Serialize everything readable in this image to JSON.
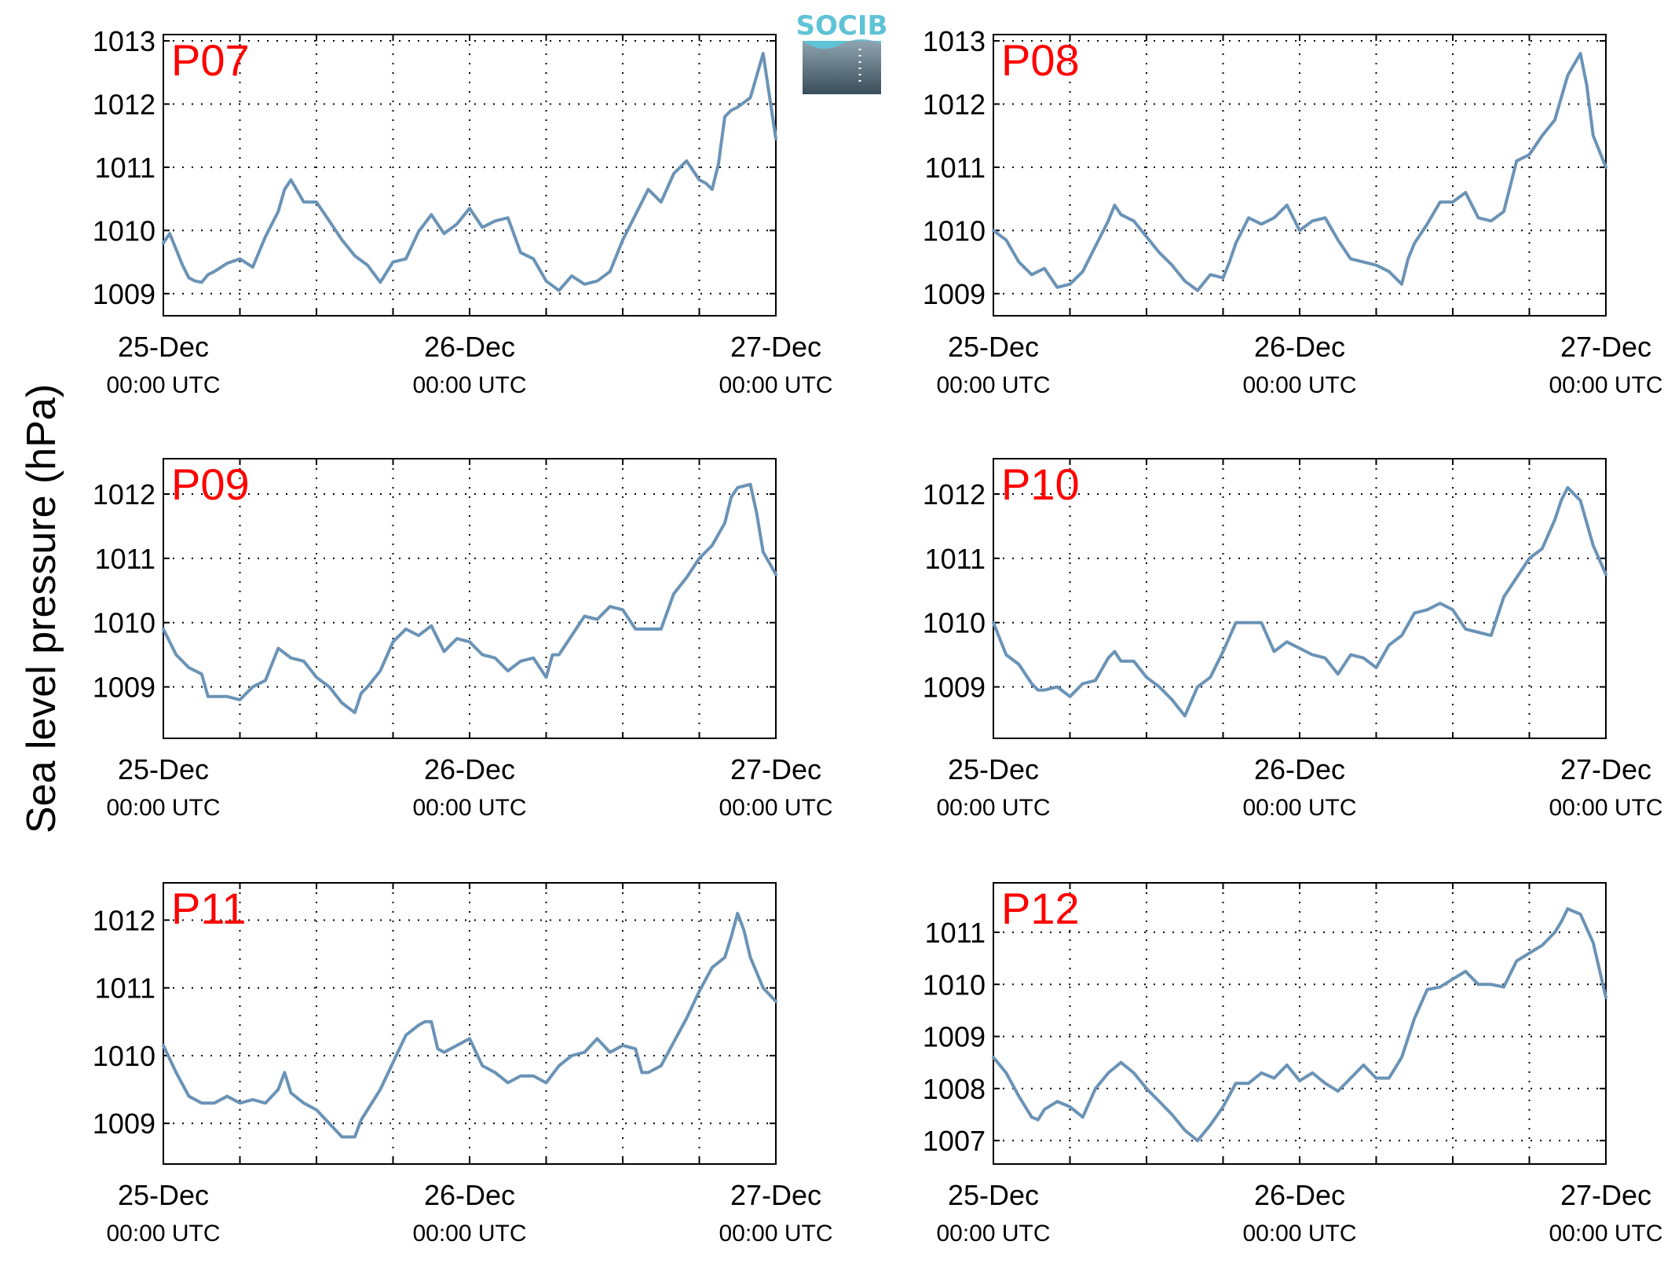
{
  "figure": {
    "ylabel": "Sea level pressure (hPa)",
    "logo_text": "SOCIB",
    "line_color": "#6a93b6",
    "label_color": "#ff0000"
  },
  "chart_data": [
    {
      "type": "line",
      "panel_label": "P07",
      "x_ticks": [
        {
          "date": "25-Dec",
          "time": "00:00 UTC"
        },
        {
          "date": "26-Dec",
          "time": "00:00 UTC"
        },
        {
          "date": "27-Dec",
          "time": "00:00 UTC"
        }
      ],
      "x_range_hours": [
        0,
        48
      ],
      "ylim": [
        1008.65,
        1013.1
      ],
      "yticks": [
        1009,
        1010,
        1011,
        1012,
        1013
      ],
      "grid": true,
      "series": [
        {
          "x_hours": [
            0,
            0.5,
            1,
            1.5,
            2,
            2.5,
            3,
            3.5,
            4,
            5,
            6,
            7,
            8,
            9,
            9.5,
            10,
            11,
            12,
            13,
            14,
            15,
            16,
            17,
            18,
            19,
            20,
            21,
            22,
            23,
            24,
            25,
            26,
            27,
            28,
            29,
            30,
            31,
            32,
            33,
            34,
            35,
            36,
            37,
            38,
            39,
            40,
            40.5,
            41,
            42,
            42.5,
            43,
            43.5,
            44,
            44.5,
            45,
            46,
            47,
            48
          ],
          "y": [
            1009.8,
            1009.95,
            1009.7,
            1009.45,
            1009.25,
            1009.2,
            1009.18,
            1009.3,
            1009.35,
            1009.48,
            1009.55,
            1009.42,
            1009.9,
            1010.3,
            1010.65,
            1010.8,
            1010.45,
            1010.45,
            1010.15,
            1009.85,
            1009.6,
            1009.45,
            1009.18,
            1009.5,
            1009.55,
            1009.98,
            1010.25,
            1009.95,
            1010.1,
            1010.35,
            1010.05,
            1010.15,
            1010.2,
            1009.65,
            1009.55,
            1009.2,
            1009.05,
            1009.28,
            1009.15,
            1009.2,
            1009.35,
            1009.85,
            1010.25,
            1010.65,
            1010.45,
            1010.9,
            1011.0,
            1011.1,
            1010.8,
            1010.75,
            1010.65,
            1011.05,
            1011.8,
            1011.9,
            1011.95,
            1012.1,
            1012.8,
            1011.45
          ]
        }
      ]
    },
    {
      "type": "line",
      "panel_label": "P08",
      "x_ticks": [
        {
          "date": "25-Dec",
          "time": "00:00 UTC"
        },
        {
          "date": "26-Dec",
          "time": "00:00 UTC"
        },
        {
          "date": "27-Dec",
          "time": "00:00 UTC"
        }
      ],
      "x_range_hours": [
        0,
        48
      ],
      "ylim": [
        1008.65,
        1013.1
      ],
      "yticks": [
        1009,
        1010,
        1011,
        1012,
        1013
      ],
      "grid": true,
      "series": [
        {
          "x_hours": [
            0,
            1,
            2,
            3,
            4,
            5,
            6,
            7,
            8,
            9,
            9.5,
            10,
            11,
            12,
            13,
            14,
            15,
            16,
            17,
            18,
            18.5,
            19,
            20,
            21,
            22,
            23,
            24,
            25,
            26,
            27,
            28,
            29,
            30,
            31,
            32,
            32.5,
            33,
            34,
            35,
            36,
            37,
            38,
            39,
            40,
            41,
            42,
            43,
            44,
            44.5,
            45,
            46,
            46.5,
            47,
            48
          ],
          "y": [
            1010.0,
            1009.85,
            1009.5,
            1009.3,
            1009.4,
            1009.1,
            1009.15,
            1009.35,
            1009.75,
            1010.15,
            1010.4,
            1010.25,
            1010.15,
            1009.9,
            1009.65,
            1009.45,
            1009.2,
            1009.05,
            1009.3,
            1009.25,
            1009.5,
            1009.8,
            1010.2,
            1010.1,
            1010.2,
            1010.4,
            1010.0,
            1010.15,
            1010.2,
            1009.85,
            1009.55,
            1009.5,
            1009.45,
            1009.35,
            1009.15,
            1009.55,
            1009.8,
            1010.1,
            1010.45,
            1010.45,
            1010.6,
            1010.2,
            1010.15,
            1010.3,
            1011.1,
            1011.2,
            1011.5,
            1011.75,
            1012.1,
            1012.45,
            1012.8,
            1012.3,
            1011.5,
            1011.0
          ]
        }
      ]
    },
    {
      "type": "line",
      "panel_label": "P09",
      "x_ticks": [
        {
          "date": "25-Dec",
          "time": "00:00 UTC"
        },
        {
          "date": "26-Dec",
          "time": "00:00 UTC"
        },
        {
          "date": "27-Dec",
          "time": "00:00 UTC"
        }
      ],
      "x_range_hours": [
        0,
        48
      ],
      "ylim": [
        1008.2,
        1012.55
      ],
      "yticks": [
        1009,
        1010,
        1011,
        1012
      ],
      "grid": true,
      "series": [
        {
          "x_hours": [
            0,
            1,
            2,
            3,
            3.5,
            4,
            5,
            6,
            7,
            8,
            9,
            10,
            11,
            12,
            13,
            14,
            15,
            15.5,
            16,
            17,
            18,
            19,
            20,
            21,
            22,
            23,
            24,
            25,
            26,
            27,
            28,
            29,
            30,
            30.5,
            31,
            32,
            33,
            34,
            35,
            36,
            37,
            38,
            39,
            40,
            41,
            42,
            43,
            44,
            44.5,
            45,
            46,
            46.5,
            47,
            48
          ],
          "y": [
            1009.9,
            1009.5,
            1009.3,
            1009.2,
            1008.85,
            1008.85,
            1008.85,
            1008.8,
            1009.0,
            1009.1,
            1009.6,
            1009.45,
            1009.4,
            1009.15,
            1009.0,
            1008.75,
            1008.6,
            1008.9,
            1009.0,
            1009.25,
            1009.7,
            1009.9,
            1009.8,
            1009.95,
            1009.55,
            1009.75,
            1009.7,
            1009.5,
            1009.45,
            1009.25,
            1009.4,
            1009.45,
            1009.15,
            1009.5,
            1009.5,
            1009.8,
            1010.1,
            1010.05,
            1010.25,
            1010.2,
            1009.9,
            1009.9,
            1009.9,
            1010.45,
            1010.7,
            1011.0,
            1011.2,
            1011.55,
            1011.95,
            1012.1,
            1012.15,
            1011.7,
            1011.1,
            1010.75
          ]
        }
      ]
    },
    {
      "type": "line",
      "panel_label": "P10",
      "x_ticks": [
        {
          "date": "25-Dec",
          "time": "00:00 UTC"
        },
        {
          "date": "26-Dec",
          "time": "00:00 UTC"
        },
        {
          "date": "27-Dec",
          "time": "00:00 UTC"
        }
      ],
      "x_range_hours": [
        0,
        48
      ],
      "ylim": [
        1008.2,
        1012.55
      ],
      "yticks": [
        1009,
        1010,
        1011,
        1012
      ],
      "grid": true,
      "series": [
        {
          "x_hours": [
            0,
            1,
            2,
            3,
            3.5,
            4,
            5,
            6,
            7,
            8,
            9,
            9.5,
            10,
            11,
            12,
            13,
            14,
            15,
            16,
            17,
            18,
            19,
            20,
            21,
            22,
            23,
            24,
            25,
            26,
            27,
            28,
            29,
            30,
            31,
            32,
            33,
            34,
            35,
            36,
            37,
            38,
            39,
            40,
            41,
            42,
            43,
            44,
            44.5,
            45,
            46,
            47,
            48
          ],
          "y": [
            1010.0,
            1009.5,
            1009.35,
            1009.05,
            1008.95,
            1008.95,
            1009.0,
            1008.85,
            1009.05,
            1009.1,
            1009.45,
            1009.55,
            1009.4,
            1009.4,
            1009.15,
            1009.0,
            1008.8,
            1008.55,
            1009.0,
            1009.15,
            1009.55,
            1010.0,
            1010.0,
            1010.0,
            1009.55,
            1009.7,
            1009.6,
            1009.5,
            1009.45,
            1009.2,
            1009.5,
            1009.45,
            1009.3,
            1009.65,
            1009.8,
            1010.15,
            1010.2,
            1010.3,
            1010.2,
            1009.9,
            1009.85,
            1009.8,
            1010.4,
            1010.7,
            1011.0,
            1011.15,
            1011.6,
            1011.9,
            1012.1,
            1011.9,
            1011.2,
            1010.75
          ]
        }
      ]
    },
    {
      "type": "line",
      "panel_label": "P11",
      "x_ticks": [
        {
          "date": "25-Dec",
          "time": "00:00 UTC"
        },
        {
          "date": "26-Dec",
          "time": "00:00 UTC"
        },
        {
          "date": "27-Dec",
          "time": "00:00 UTC"
        }
      ],
      "x_range_hours": [
        0,
        48
      ],
      "ylim": [
        1008.4,
        1012.55
      ],
      "yticks": [
        1009,
        1010,
        1011,
        1012
      ],
      "grid": true,
      "series": [
        {
          "x_hours": [
            0,
            1,
            2,
            3,
            4,
            5,
            6,
            7,
            8,
            9,
            9.5,
            10,
            11,
            12,
            13,
            14,
            15,
            15.5,
            16,
            17,
            18,
            19,
            20,
            20.5,
            21,
            21.5,
            22,
            23,
            24,
            25,
            26,
            27,
            28,
            29,
            30,
            31,
            32,
            33,
            34,
            35,
            36,
            37,
            37.5,
            38,
            39,
            40,
            41,
            42,
            43,
            44,
            44.5,
            45,
            45.5,
            46,
            47,
            48
          ],
          "y": [
            1010.15,
            1009.75,
            1009.4,
            1009.3,
            1009.3,
            1009.4,
            1009.3,
            1009.35,
            1009.3,
            1009.5,
            1009.75,
            1009.45,
            1009.3,
            1009.2,
            1009.0,
            1008.8,
            1008.8,
            1009.05,
            1009.2,
            1009.5,
            1009.9,
            1010.3,
            1010.45,
            1010.5,
            1010.5,
            1010.1,
            1010.05,
            1010.15,
            1010.25,
            1009.85,
            1009.75,
            1009.6,
            1009.7,
            1009.7,
            1009.6,
            1009.85,
            1010.0,
            1010.05,
            1010.25,
            1010.05,
            1010.15,
            1010.1,
            1009.75,
            1009.75,
            1009.85,
            1010.2,
            1010.55,
            1010.95,
            1011.3,
            1011.45,
            1011.75,
            1012.1,
            1011.85,
            1011.45,
            1011.0,
            1010.8
          ]
        }
      ]
    },
    {
      "type": "line",
      "panel_label": "P12",
      "x_ticks": [
        {
          "date": "25-Dec",
          "time": "00:00 UTC"
        },
        {
          "date": "26-Dec",
          "time": "00:00 UTC"
        },
        {
          "date": "27-Dec",
          "time": "00:00 UTC"
        }
      ],
      "x_range_hours": [
        0,
        48
      ],
      "ylim": [
        1006.55,
        1011.95
      ],
      "yticks": [
        1007,
        1008,
        1009,
        1010,
        1011
      ],
      "grid": true,
      "series": [
        {
          "x_hours": [
            0,
            1,
            2,
            3,
            3.5,
            4,
            5,
            6,
            7,
            8,
            9,
            10,
            11,
            12,
            13,
            14,
            15,
            15.5,
            16,
            17,
            18,
            19,
            20,
            21,
            22,
            23,
            24,
            25,
            26,
            27,
            28,
            29,
            30,
            31,
            32,
            33,
            34,
            35,
            36,
            37,
            38,
            39,
            40,
            41,
            42,
            43,
            44,
            44.5,
            45,
            45.5,
            46,
            47,
            48
          ],
          "y": [
            1008.6,
            1008.3,
            1007.85,
            1007.45,
            1007.4,
            1007.6,
            1007.75,
            1007.65,
            1007.45,
            1008.0,
            1008.3,
            1008.5,
            1008.3,
            1008.0,
            1007.75,
            1007.5,
            1007.2,
            1007.1,
            1007.0,
            1007.3,
            1007.65,
            1008.1,
            1008.1,
            1008.3,
            1008.2,
            1008.45,
            1008.15,
            1008.3,
            1008.1,
            1007.95,
            1008.2,
            1008.45,
            1008.2,
            1008.2,
            1008.6,
            1009.35,
            1009.9,
            1009.95,
            1010.1,
            1010.25,
            1010.0,
            1010.0,
            1009.95,
            1010.45,
            1010.6,
            1010.75,
            1011.0,
            1011.2,
            1011.45,
            1011.4,
            1011.35,
            1010.8,
            1009.75
          ]
        }
      ]
    }
  ]
}
